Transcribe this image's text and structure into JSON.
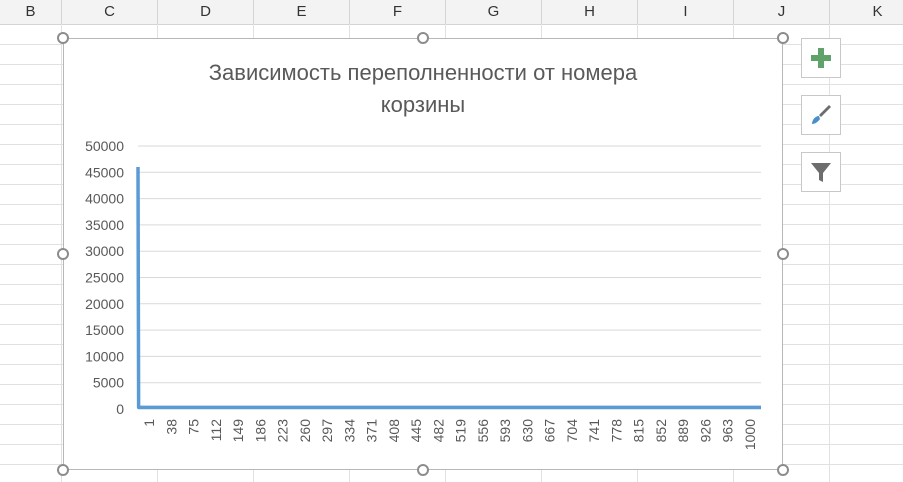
{
  "sheet": {
    "columns": [
      "B",
      "C",
      "D",
      "E",
      "F",
      "G",
      "H",
      "I",
      "J",
      "K"
    ]
  },
  "chart_data": {
    "type": "line",
    "title": "Зависимость переполненности от номера корзины",
    "title_lines": [
      "Зависимость переполненности от номера",
      "корзины"
    ],
    "y_tick_labels": [
      "50000",
      "45000",
      "40000",
      "35000",
      "30000",
      "25000",
      "20000",
      "15000",
      "10000",
      "5000",
      "0"
    ],
    "ylim": [
      0,
      50000
    ],
    "x_tick_labels": [
      "1",
      "38",
      "75",
      "112",
      "149",
      "186",
      "223",
      "260",
      "297",
      "334",
      "371",
      "408",
      "445",
      "482",
      "519",
      "556",
      "593",
      "630",
      "667",
      "704",
      "741",
      "778",
      "815",
      "852",
      "889",
      "926",
      "963",
      "1000"
    ],
    "xlim": [
      1,
      1000
    ],
    "grid": true,
    "legend": "none",
    "series": [
      {
        "color": "#5b9bd5",
        "points": [
          [
            1,
            46000
          ],
          [
            2,
            300
          ],
          [
            1000,
            300
          ]
        ]
      }
    ]
  },
  "toolbar": {
    "icons": [
      "plus-icon",
      "brush-icon",
      "filter-icon"
    ],
    "plus_color": "#5fa36b",
    "brush_color": "#4a8fcb",
    "filter_color": "#6d6d6d"
  }
}
